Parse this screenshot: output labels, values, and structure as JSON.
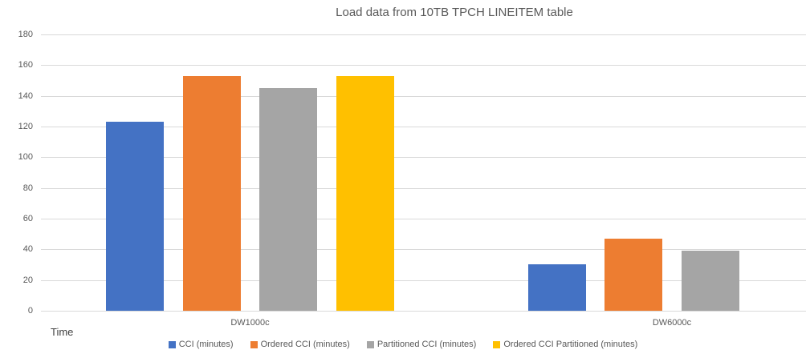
{
  "chart_data": {
    "type": "bar",
    "title": "Load data from 10TB TPCH LINEITEM table",
    "xlabel": "Time",
    "ylabel": "",
    "categories": [
      "DW1000c",
      "DW6000c"
    ],
    "series": [
      {
        "name": "CCI (minutes)",
        "color": "#4472C4",
        "values": [
          123,
          30
        ]
      },
      {
        "name": "Ordered CCI (minutes)",
        "color": "#ED7D31",
        "values": [
          153,
          47
        ]
      },
      {
        "name": "Partitioned CCI (minutes)",
        "color": "#A5A5A5",
        "values": [
          145,
          39
        ]
      },
      {
        "name": "Ordered CCI Partitioned (minutes)",
        "color": "#FFC000",
        "values": [
          153,
          null
        ]
      }
    ],
    "ylim": [
      0,
      180
    ],
    "yticks": [
      0,
      20,
      40,
      60,
      80,
      100,
      120,
      140,
      160,
      180
    ],
    "grid": true,
    "legend_position": "bottom",
    "gridline_color": "#D9D9D9",
    "text_color": "#595959"
  }
}
